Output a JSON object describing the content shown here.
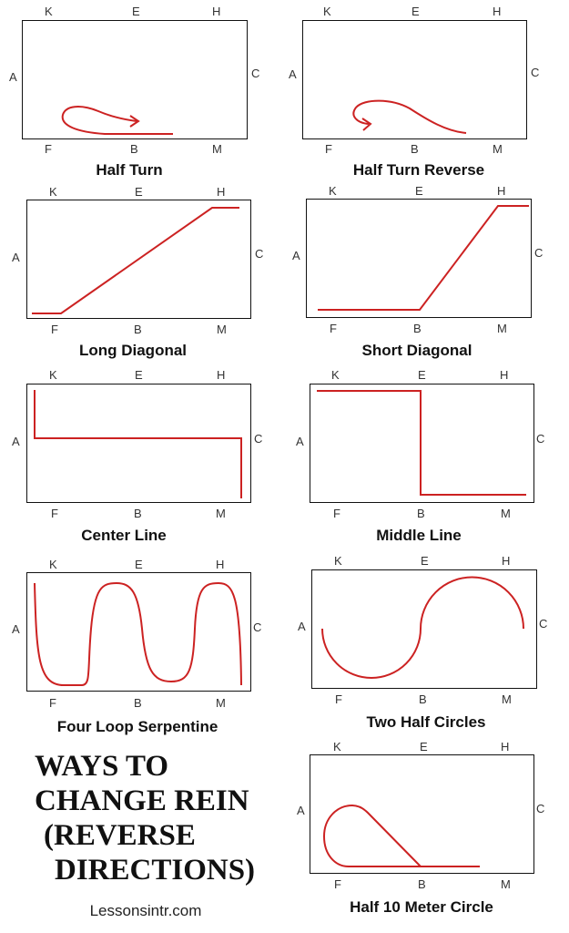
{
  "letters": {
    "K": "K",
    "E": "E",
    "H": "H",
    "A": "A",
    "C": "C",
    "F": "F",
    "B": "B",
    "M": "M"
  },
  "captions": {
    "half_turn": "Half Turn",
    "half_turn_reverse": "Half Turn Reverse",
    "long_diagonal": "Long Diagonal",
    "short_diagonal": "Short Diagonal",
    "center_line": "Center Line",
    "middle_line": "Middle Line",
    "four_loop_serpentine": "Four Loop Serpentine",
    "two_half_circles": "Two Half Circles",
    "half_10_meter_circle": "Half 10 Meter Circle"
  },
  "heading_lines": [
    "WAYS TO",
    "CHANGE REIN",
    "(REVERSE",
    "DIRECTIONS)"
  ],
  "site": "Lessonsintr.com",
  "colors": {
    "path": "#cc2222",
    "border": "#111111"
  }
}
